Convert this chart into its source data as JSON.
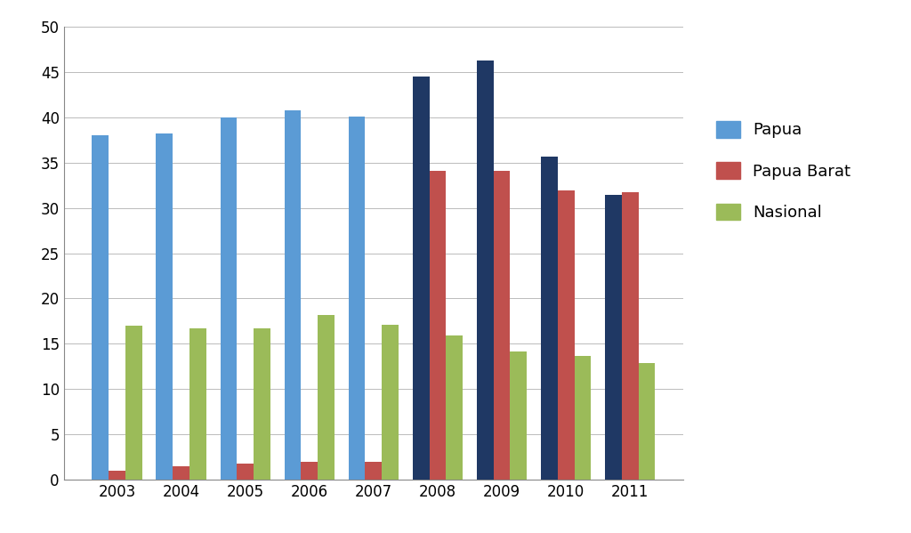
{
  "years": [
    2003,
    2004,
    2005,
    2006,
    2007,
    2008,
    2009,
    2010,
    2011
  ],
  "papua": [
    38.0,
    38.2,
    40.0,
    40.8,
    40.1,
    44.5,
    46.3,
    35.7,
    31.4
  ],
  "papua_barat": [
    1.0,
    1.5,
    1.8,
    2.0,
    2.0,
    34.1,
    34.1,
    31.9,
    31.7
  ],
  "nasional": [
    17.0,
    16.7,
    16.7,
    18.2,
    17.1,
    15.9,
    14.2,
    13.7,
    12.9
  ],
  "color_papua_early": "#5B9BD5",
  "color_papua_late": "#1F3864",
  "color_papua_barat": "#C0504D",
  "color_nasional": "#9BBB59",
  "ylim": [
    0,
    50
  ],
  "yticks": [
    0,
    5,
    10,
    15,
    20,
    25,
    30,
    35,
    40,
    45,
    50
  ],
  "legend_labels": [
    "Papua",
    "Papua Barat",
    "Nasional"
  ],
  "background_color": "#FFFFFF",
  "grid_color": "#BBBBBB"
}
